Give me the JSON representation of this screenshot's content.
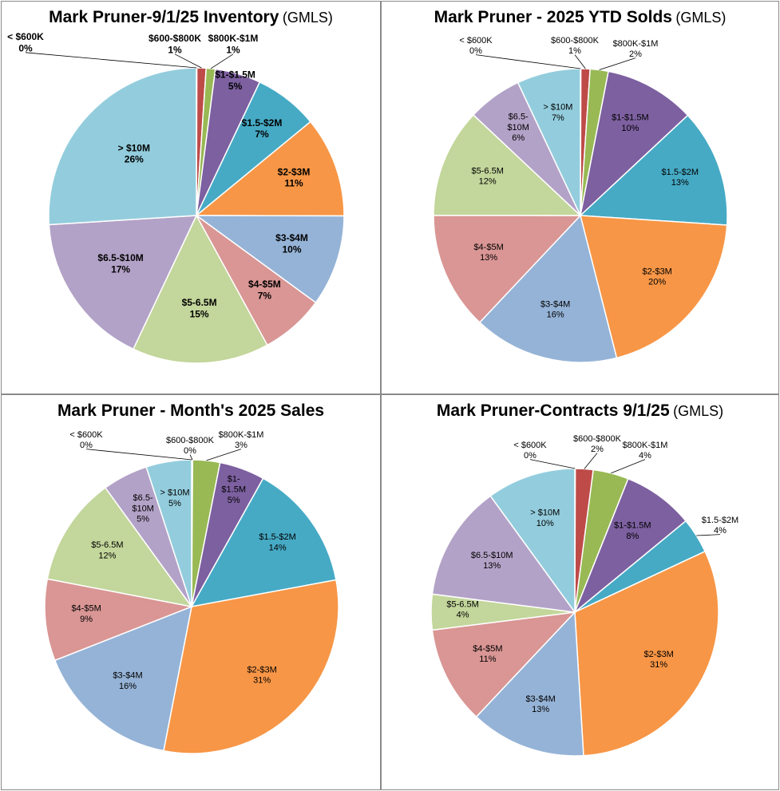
{
  "chart_data": [
    {
      "type": "pie",
      "title": "Mark Pruner-9/1/25 Inventory",
      "subtitle": "(GMLS)",
      "categories": [
        "< $600K",
        "$600-$800K",
        "$800K-$1M",
        "$1-$1.5M",
        "$1.5-$2M",
        "$2-$3M",
        "$3-$4M",
        "$4-$5M",
        "$5-6.5M",
        "$6.5-$10M",
        "> $10M"
      ],
      "values": [
        0,
        1,
        1,
        5,
        7,
        11,
        10,
        7,
        15,
        17,
        26
      ],
      "labels": [
        "0%",
        "1%",
        "1%",
        "5%",
        "7%",
        "11%",
        "10%",
        "7%",
        "15%",
        "17%",
        "26%"
      ],
      "label_style": "bold"
    },
    {
      "type": "pie",
      "title": "Mark Pruner - 2025 YTD Solds",
      "subtitle": "(GMLS)",
      "categories": [
        "< $600K",
        "$600-$800K",
        "$800K-$1M",
        "$1-$1.5M",
        "$1.5-$2M",
        "$2-$3M",
        "$3-$4M",
        "$4-$5M",
        "$5-6.5M",
        "$6.5-\n$10M",
        "> $10M"
      ],
      "values": [
        0,
        1,
        2,
        10,
        13,
        20,
        16,
        13,
        12,
        6,
        7
      ],
      "labels": [
        "0%",
        "1%",
        "2%",
        "10%",
        "13%",
        "20%",
        "16%",
        "13%",
        "12%",
        "6%",
        "7%"
      ],
      "label_style": "normal"
    },
    {
      "type": "pie",
      "title": "Mark Pruner - Month's 2025 Sales",
      "subtitle": "",
      "categories": [
        "< $600K",
        "$600-$800K",
        "$800K-$1M",
        "$1-\n$1.5M",
        "$1.5-$2M",
        "$2-$3M",
        "$3-$4M",
        "$4-$5M",
        "$5-6.5M",
        "$6.5-\n$10M",
        "> $10M"
      ],
      "values": [
        0,
        0,
        3,
        5,
        14,
        31,
        16,
        9,
        12,
        5,
        5
      ],
      "labels": [
        "0%",
        "0%",
        "3%",
        "5%",
        "14%",
        "31%",
        "16%",
        "9%",
        "12%",
        "5%",
        "5%"
      ],
      "label_style": "normal"
    },
    {
      "type": "pie",
      "title": "Mark Pruner-Contracts 9/1/25",
      "subtitle": "(GMLS)",
      "categories": [
        "< $600K",
        "$600-$800K",
        "$800K-$1M",
        "$1-$1.5M",
        "$1.5-$2M",
        "$2-$3M",
        "$3-$4M",
        "$4-$5M",
        "$5-6.5M",
        "$6.5-$10M",
        "> $10M"
      ],
      "values": [
        0,
        2,
        4,
        8,
        4,
        31,
        13,
        11,
        4,
        13,
        10
      ],
      "labels": [
        "0%",
        "2%",
        "4%",
        "8%",
        "4%",
        "31%",
        "13%",
        "11%",
        "4%",
        "13%",
        "10%"
      ],
      "label_style": "normal"
    }
  ],
  "colors": [
    "#4a7ebb",
    "#be4b48",
    "#98b954",
    "#7d60a0",
    "#46aac5",
    "#f79646",
    "#95b3d7",
    "#d99694",
    "#c3d69b",
    "#b3a2c7",
    "#93cddd"
  ]
}
